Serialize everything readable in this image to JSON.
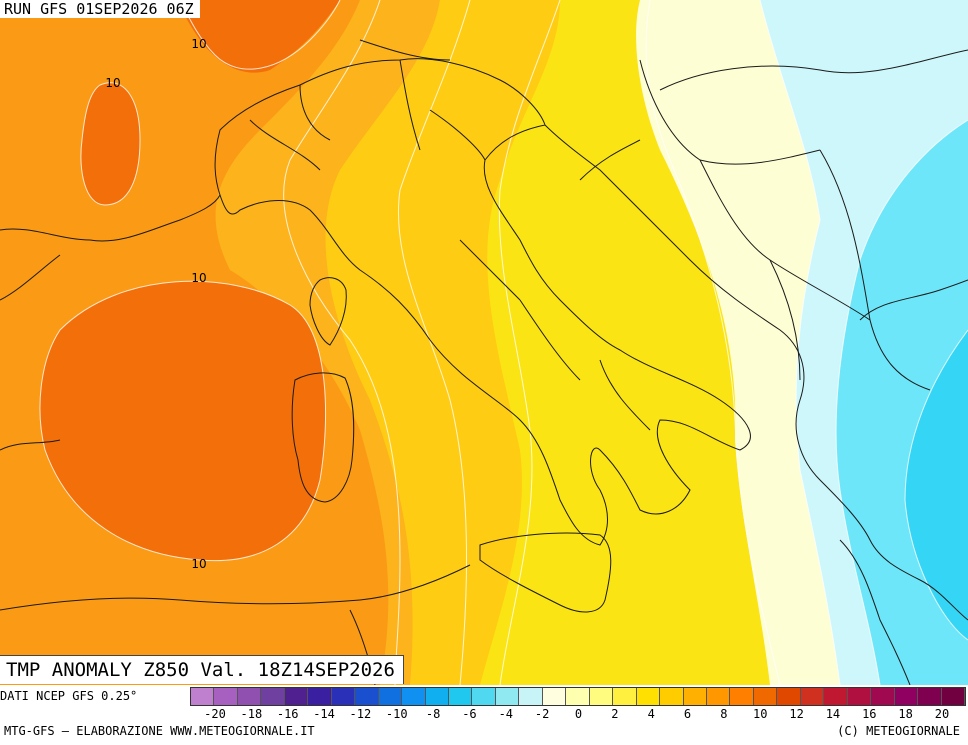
{
  "header": {
    "run": "RUN GFS 01SEP2026 06Z"
  },
  "title": {
    "text": "TMP ANOMALY Z850 Val. 18Z14SEP2026"
  },
  "source": {
    "text": "DATI NCEP GFS 0.25°"
  },
  "footer": {
    "left": "MTG-GFS — ELABORAZIONE WWW.METEOGIORNALE.IT",
    "right": "(C) METEOGIORNALE"
  },
  "contour_labels": [
    "10",
    "10",
    "10",
    "10"
  ],
  "colorbar": {
    "tick_labels": [
      "-20",
      "-18",
      "-16",
      "-14",
      "-12",
      "-10",
      "-8",
      "-6",
      "-4",
      "-2",
      "0",
      "2",
      "4",
      "6",
      "8",
      "10",
      "12",
      "14",
      "16",
      "18",
      "20"
    ],
    "colors": [
      "#c080d0",
      "#a860c0",
      "#9050b0",
      "#7040a0",
      "#502090",
      "#3a1fa0",
      "#2a30b8",
      "#1a50d0",
      "#1070e0",
      "#1090f0",
      "#10b0f0",
      "#20c8f0",
      "#50d8f0",
      "#90e8f0",
      "#c8f4f8",
      "#ffffe0",
      "#ffffb0",
      "#fffc80",
      "#fff040",
      "#ffe000",
      "#ffcc00",
      "#ffb000",
      "#ff9800",
      "#ff8000",
      "#f06800",
      "#e04800",
      "#d03020",
      "#c01830",
      "#b01040",
      "#a00850",
      "#900060",
      "#800050",
      "#700040"
    ]
  },
  "colors": {
    "orange_deep": "#f26f0a",
    "orange": "#fb9a14",
    "orange_light": "#fdb31c",
    "yellow_orange": "#ffcc14",
    "yellow": "#fbe413",
    "yellow_bright": "#fff200",
    "pale_yellow": "#fffb9d",
    "cream": "#fdfed4",
    "pale_cyan": "#cdf7fb",
    "cyan": "#6ce6f8",
    "cyan_deep": "#35d5f5"
  }
}
